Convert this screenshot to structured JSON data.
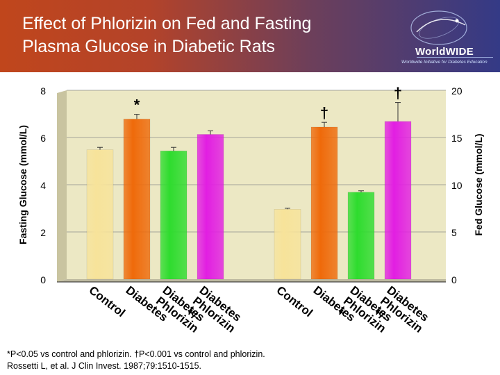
{
  "title_lines": [
    "Effect of Phlorizin on Fed and Fasting",
    "Plasma Glucose in Diabetic Rats"
  ],
  "logo": {
    "name": "WorldWIDE",
    "tagline": "Worldwide Initiative for Diabetes Education",
    "icon": "globe-swirl-icon"
  },
  "colors": {
    "header_start": "#c0461c",
    "header_end": "#343a86",
    "plot_bg": "#ece8c4",
    "control": "#f7e39a",
    "diabetes": "#ef6a0a",
    "phlorizin": "#2edc2e",
    "phlorizin_plus": "#e21ee2"
  },
  "chart_data": {
    "type": "bar",
    "ylabel_left": "Fasting Glucose (mmol/L)",
    "ylabel_right": "Fed Glucose (mmol/L)",
    "ylim_left": [
      0,
      8
    ],
    "ylim_right": [
      0,
      20
    ],
    "yticks_left": [
      "0",
      "2",
      "4",
      "6",
      "8"
    ],
    "yticks_right": [
      "0",
      "5",
      "10",
      "15",
      "20"
    ],
    "gridlines": true,
    "groups": [
      {
        "axis": "left",
        "categories": [
          "Control",
          "Diabetes",
          "Diabetes Phlorizin",
          "Diabetes Phlorizin +/-"
        ],
        "values": [
          5.6,
          6.9,
          5.55,
          6.25
        ],
        "errors": [
          0.1,
          0.2,
          0.15,
          0.15
        ],
        "markers": [
          "",
          "*",
          "",
          ""
        ]
      },
      {
        "axis": "right",
        "categories": [
          "Control",
          "Diabetes",
          "Diabetes Phlorizin +",
          "Diabetes Phlorizin +/-"
        ],
        "values": [
          7.7,
          16.4,
          9.5,
          17.0
        ],
        "errors": [
          0.1,
          0.5,
          0.15,
          2.0
        ],
        "markers": [
          "",
          "†",
          "",
          "†"
        ]
      }
    ]
  },
  "footer": {
    "note": "*P<0.05 vs control and phlorizin. †P<0.001 vs control and phlorizin.",
    "reference": "Rossetti L, et al. J Clin Invest. 1987;79:1510-1515."
  }
}
